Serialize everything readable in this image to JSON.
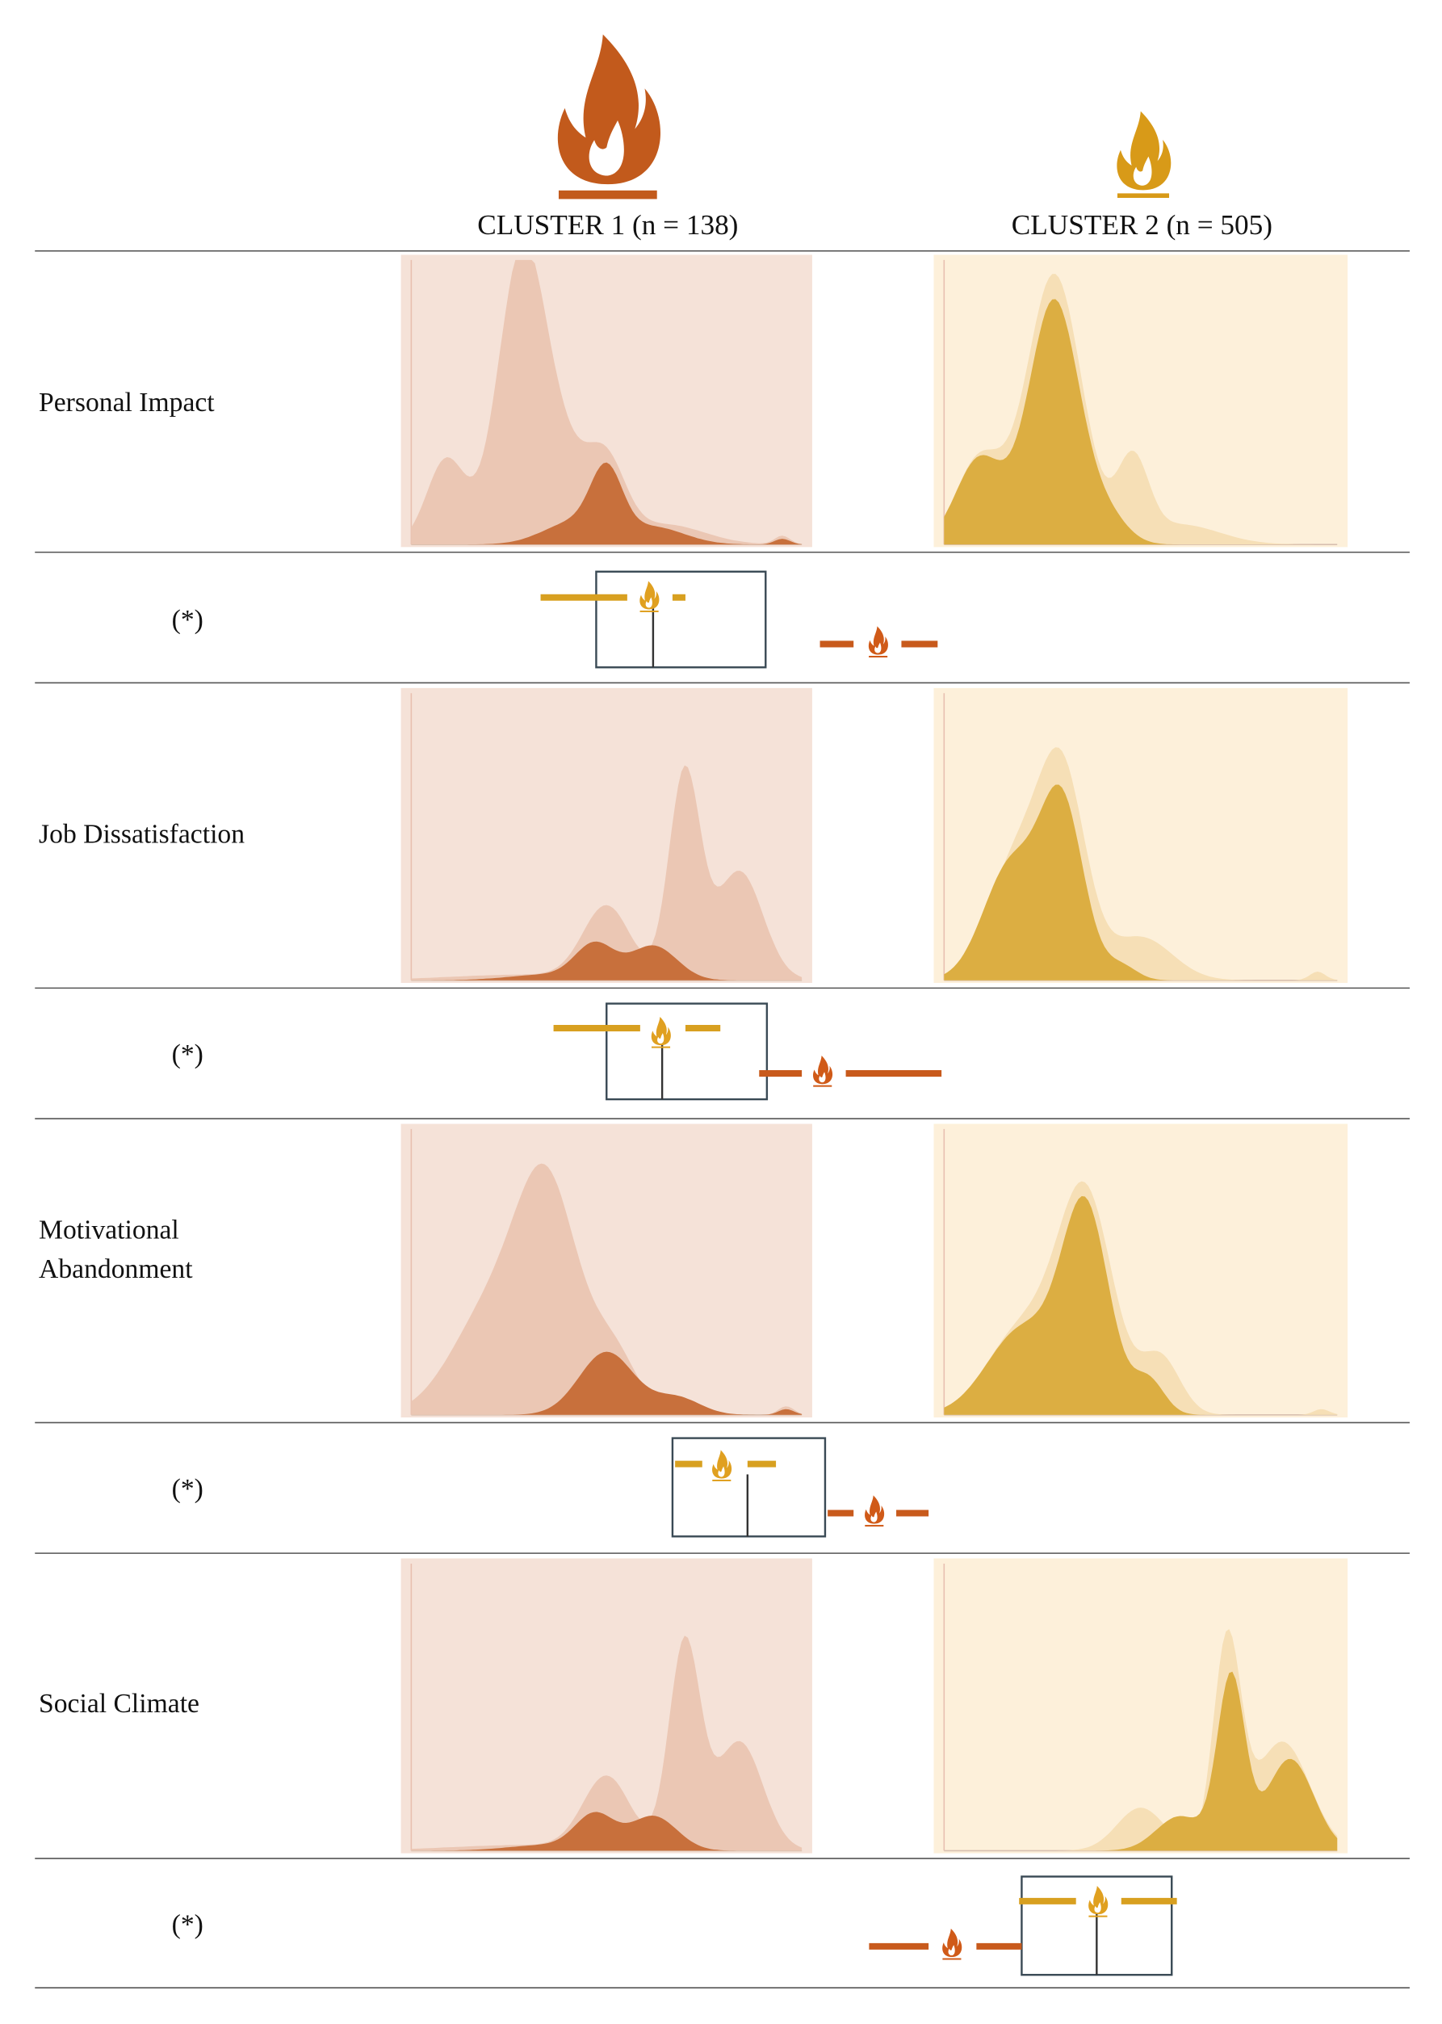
{
  "header": {
    "columns": [
      "CLUSTER 1 (n = 138)",
      "CLUSTER 2 (n = 505)"
    ]
  },
  "rows": [
    {
      "label": [
        "Personal Impact"
      ],
      "note": "(*)"
    },
    {
      "label": [
        "Job Dissatisfaction"
      ],
      "note": "(*)"
    },
    {
      "label": [
        "Motivational",
        "Abandonment"
      ],
      "note": "(*)"
    },
    {
      "label": [
        "Social Climate"
      ],
      "note": "(*)"
    }
  ]
}
